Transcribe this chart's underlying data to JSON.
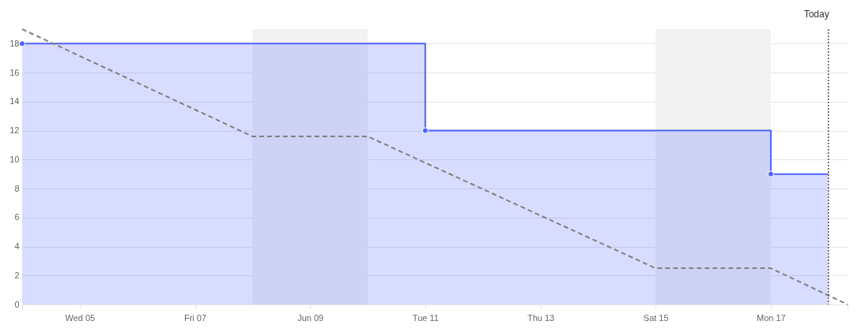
{
  "chart_data": {
    "type": "line",
    "xlim": [
      "--06-04",
      "--06-18T08:00"
    ],
    "xticks": [
      {
        "value": "--06-04",
        "label": null
      },
      {
        "value": "--06-05",
        "label": "Wed 05"
      },
      {
        "value": "--06-07",
        "label": "Fri 07"
      },
      {
        "value": "--06-09",
        "label": "Jun 09"
      },
      {
        "value": "--06-11",
        "label": "Tue 11"
      },
      {
        "value": "--06-13",
        "label": "Thu 13"
      },
      {
        "value": "--06-15",
        "label": "Sat 15"
      },
      {
        "value": "--06-17",
        "label": "Mon 17"
      },
      {
        "value": "--06-18T08:00",
        "label": null
      }
    ],
    "ylim": [
      0,
      19
    ],
    "yticks": [
      0,
      2,
      4,
      6,
      8,
      10,
      12,
      14,
      16,
      18
    ],
    "grid": "y",
    "series": [
      {
        "type": "area",
        "color": "#4f63ff",
        "marker": "circle",
        "line_style": "solid",
        "x": [
          "--06-04",
          "--06-11",
          "--06-11",
          "--06-17",
          "--06-17",
          "--06-18"
        ],
        "values": [
          18,
          18,
          12,
          12,
          9,
          9
        ]
      },
      {
        "color": "#808080",
        "marker": "none",
        "line_style": "dashed",
        "x": [
          "--06-04",
          "--06-08",
          "--06-10",
          "--06-15",
          "--06-17",
          "--06-18T08:00"
        ],
        "values": [
          19,
          11.6,
          11.6,
          2.5,
          2.5,
          0
        ]
      }
    ],
    "bands": [
      {
        "axis": "x",
        "from": "--06-08",
        "to": "--06-10",
        "color": "#f2f2f2"
      },
      {
        "axis": "x",
        "from": "--06-15",
        "to": "--06-17",
        "color": "#f2f2f2"
      }
    ],
    "ref_lines": [
      {
        "axis": "x",
        "value": "--06-18",
        "label": "Today",
        "color": "#555555",
        "line_style": "dotted"
      }
    ]
  }
}
